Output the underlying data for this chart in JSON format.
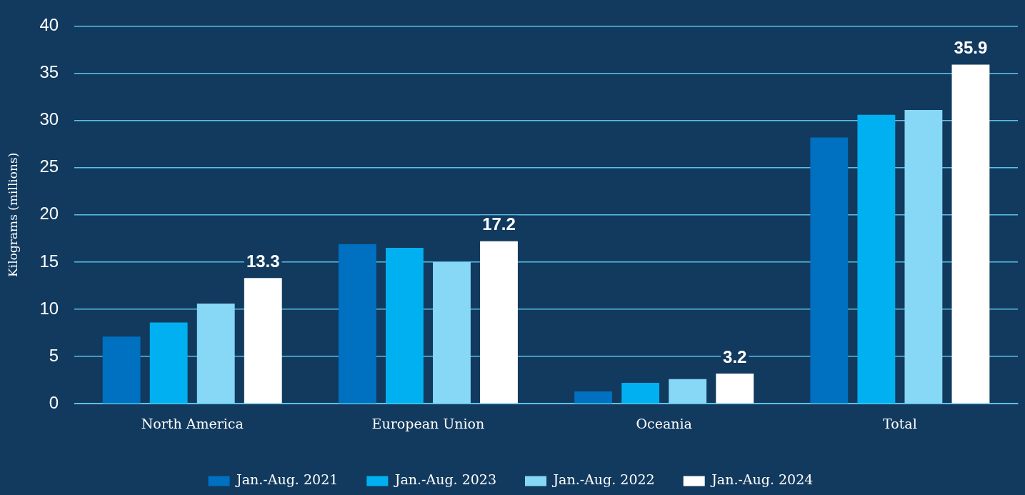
{
  "chart_data": {
    "type": "bar",
    "ylabel": "Kilograms (millions)",
    "categories": [
      "North America",
      "European Union",
      "Oceania",
      "Total"
    ],
    "series": [
      {
        "name": "Jan.-Aug. 2021",
        "color": "#0070c0",
        "values": [
          7.1,
          16.9,
          1.3,
          28.2
        ]
      },
      {
        "name": "Jan.-Aug. 2023",
        "color": "#00b0f0",
        "values": [
          8.6,
          16.5,
          2.2,
          30.6
        ]
      },
      {
        "name": "Jan.-Aug. 2022",
        "color": "#87d7f7",
        "values": [
          10.6,
          15.0,
          2.6,
          31.1
        ]
      },
      {
        "name": "Jan.-Aug. 2024",
        "color": "#ffffff",
        "values": [
          13.3,
          17.2,
          3.2,
          35.9
        ],
        "value_labels": [
          "13.3",
          "17.2",
          "3.2",
          "35.9"
        ]
      }
    ],
    "ylim": [
      0,
      40
    ],
    "yticks": [
      0,
      5,
      10,
      15,
      20,
      25,
      30,
      35,
      40
    ],
    "grid": "y",
    "legend": "bottom"
  }
}
